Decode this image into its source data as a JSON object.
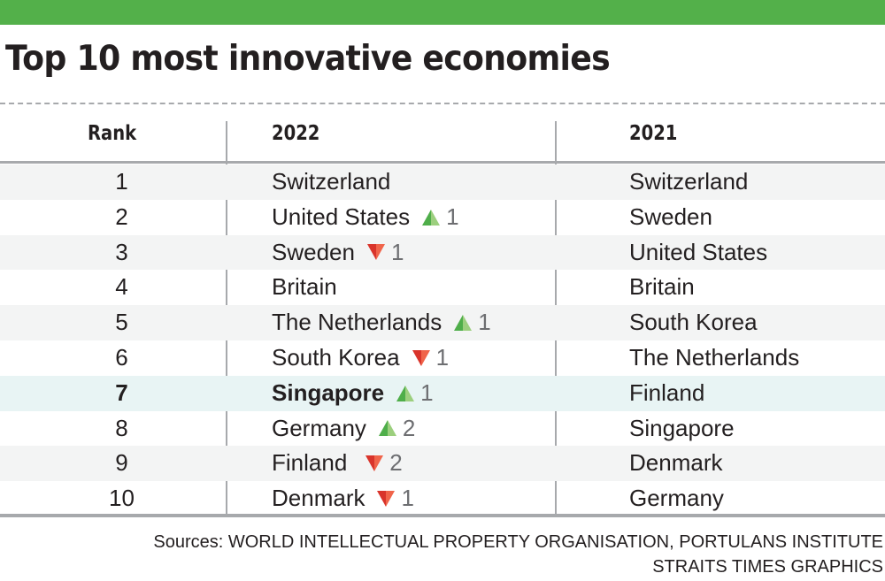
{
  "title": "Top 10 most innovative economies",
  "colors": {
    "top_bar": "#53b04a",
    "up_dark": "#4fae4a",
    "up_light": "#9ccf7e",
    "down_dark": "#d9342b",
    "down_light": "#f0644a",
    "highlight_row": "#e8f4f4",
    "alt_row": "#f3f4f4"
  },
  "chart_data": {
    "type": "table",
    "title": "Top 10 most innovative economies",
    "columns": [
      "Rank",
      "2022",
      "2021"
    ],
    "rows": [
      {
        "rank": "1",
        "y2022": "Switzerland",
        "change_dir": "",
        "change": "",
        "y2021": "Switzerland",
        "highlight": false
      },
      {
        "rank": "2",
        "y2022": "United States",
        "change_dir": "up",
        "change": "1",
        "y2021": "Sweden",
        "highlight": false
      },
      {
        "rank": "3",
        "y2022": "Sweden",
        "change_dir": "down",
        "change": "1",
        "y2021": "United States",
        "highlight": false
      },
      {
        "rank": "4",
        "y2022": "Britain",
        "change_dir": "",
        "change": "",
        "y2021": "Britain",
        "highlight": false
      },
      {
        "rank": "5",
        "y2022": "The Netherlands",
        "change_dir": "up",
        "change": "1",
        "y2021": "South Korea",
        "highlight": false
      },
      {
        "rank": "6",
        "y2022": "South Korea",
        "change_dir": "down",
        "change": "1",
        "y2021": "The Netherlands",
        "highlight": false
      },
      {
        "rank": "7",
        "y2022": "Singapore",
        "change_dir": "up",
        "change": "1",
        "y2021": "Finland",
        "highlight": true
      },
      {
        "rank": "8",
        "y2022": "Germany",
        "change_dir": "up",
        "change": "2",
        "y2021": "Singapore",
        "highlight": false
      },
      {
        "rank": "9",
        "y2022": "Finland",
        "change_dir": "down",
        "change": "2",
        "y2021": "Denmark",
        "highlight": false
      },
      {
        "rank": "10",
        "y2022": "Denmark",
        "change_dir": "down",
        "change": "1",
        "y2021": "Germany",
        "highlight": false
      }
    ]
  },
  "source": {
    "line1": "Sources: WORLD INTELLECTUAL PROPERTY ORGANISATION, PORTULANS INSTITUTE",
    "line2": "STRAITS TIMES GRAPHICS"
  }
}
